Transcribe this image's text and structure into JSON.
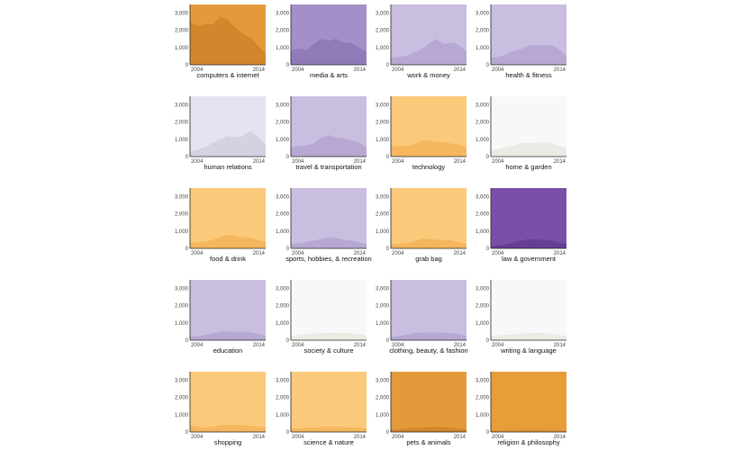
{
  "chart_data": {
    "type": "area",
    "layout": "small-multiples",
    "columns": 4,
    "rows": 5,
    "x_ticks": [
      "2004",
      "2014"
    ],
    "x_range": [
      2004,
      2014
    ],
    "y_ticks": [
      0,
      1000,
      2000,
      3000
    ],
    "y_tick_labels": [
      "0",
      "1,000",
      "2,000",
      "3,000"
    ],
    "ylim": [
      0,
      3500
    ],
    "years": [
      2004,
      2005,
      2006,
      2007,
      2008,
      2009,
      2010,
      2011,
      2012,
      2013,
      2014
    ],
    "panels": [
      {
        "label": "computers & internet",
        "bg": "#e49a3c",
        "fill": "#d4862c",
        "values": [
          2500,
          2250,
          2350,
          2350,
          2800,
          2600,
          2150,
          1800,
          1600,
          1100,
          650
        ]
      },
      {
        "label": "media & arts",
        "bg": "#a390c8",
        "fill": "#8f7bb8",
        "values": [
          800,
          950,
          850,
          1200,
          1500,
          1400,
          1500,
          1300,
          1250,
          1000,
          750
        ]
      },
      {
        "label": "work & money",
        "bg": "#c9bde0",
        "fill": "#b6a8d2",
        "values": [
          400,
          450,
          500,
          700,
          900,
          1200,
          1500,
          1200,
          1300,
          1150,
          750
        ]
      },
      {
        "label": "health & fitness",
        "bg": "#c9bde0",
        "fill": "#b6a8d2",
        "values": [
          400,
          450,
          600,
          800,
          900,
          1100,
          1150,
          1100,
          1150,
          900,
          500
        ]
      },
      {
        "label": "human relations",
        "bg": "#e6e2f1",
        "fill": "#d6d1e2",
        "values": [
          300,
          400,
          550,
          800,
          1000,
          1200,
          1100,
          1200,
          1500,
          1150,
          700
        ]
      },
      {
        "label": "travel & transportation",
        "bg": "#c9bde0",
        "fill": "#b6a8d2",
        "values": [
          550,
          600,
          650,
          750,
          1100,
          1250,
          1100,
          1050,
          950,
          800,
          550
        ]
      },
      {
        "label": "technology",
        "bg": "#fbc97a",
        "fill": "#f5b65e",
        "values": [
          600,
          600,
          650,
          700,
          900,
          950,
          850,
          850,
          750,
          700,
          500
        ]
      },
      {
        "label": "home & garden",
        "bg": "#f8f8f8",
        "fill": "#ebebe6",
        "values": [
          350,
          450,
          550,
          650,
          800,
          800,
          800,
          850,
          800,
          650,
          500
        ]
      },
      {
        "label": "food & drink",
        "bg": "#fbc97a",
        "fill": "#f5b65e",
        "values": [
          300,
          350,
          400,
          500,
          650,
          800,
          700,
          650,
          600,
          500,
          350
        ]
      },
      {
        "label": "sports, hobbies, & recreation",
        "bg": "#c9bde0",
        "fill": "#b6a8d2",
        "values": [
          250,
          300,
          350,
          450,
          550,
          650,
          600,
          500,
          450,
          350,
          250
        ]
      },
      {
        "label": "grab bag",
        "bg": "#fbc97a",
        "fill": "#f5b65e",
        "values": [
          250,
          250,
          300,
          400,
          550,
          550,
          500,
          500,
          450,
          350,
          250
        ]
      },
      {
        "label": "law & government",
        "bg": "#7a4fa8",
        "fill": "#663e93",
        "values": [
          150,
          200,
          250,
          350,
          450,
          550,
          500,
          500,
          450,
          350,
          250
        ]
      },
      {
        "label": "education",
        "bg": "#c9bde0",
        "fill": "#b6a8d2",
        "values": [
          200,
          250,
          300,
          400,
          500,
          500,
          450,
          500,
          450,
          350,
          250
        ]
      },
      {
        "label": "society & culture",
        "bg": "#f8f8f8",
        "fill": "#ebebe6",
        "values": [
          250,
          300,
          350,
          400,
          400,
          450,
          400,
          450,
          400,
          350,
          250
        ]
      },
      {
        "label": "clothing, beauty, & fashion",
        "bg": "#c9bde0",
        "fill": "#b6a8d2",
        "values": [
          200,
          250,
          300,
          400,
          450,
          450,
          450,
          450,
          400,
          350,
          250
        ]
      },
      {
        "label": "writing & language",
        "bg": "#f8f8f8",
        "fill": "#ebebe6",
        "values": [
          250,
          300,
          300,
          350,
          400,
          400,
          450,
          400,
          350,
          300,
          250
        ]
      },
      {
        "label": "shopping",
        "bg": "#fbc97a",
        "fill": "#f5b65e",
        "values": [
          400,
          300,
          250,
          300,
          400,
          400,
          400,
          400,
          350,
          300,
          250
        ]
      },
      {
        "label": "science & nature",
        "bg": "#fbc97a",
        "fill": "#f5b65e",
        "values": [
          200,
          200,
          250,
          250,
          300,
          300,
          300,
          300,
          250,
          250,
          200
        ]
      },
      {
        "label": "pets & animals",
        "bg": "#e49a3c",
        "fill": "#d4862c",
        "values": [
          150,
          150,
          200,
          250,
          250,
          300,
          300,
          300,
          250,
          200,
          150
        ]
      },
      {
        "label": "religion & philosophy",
        "bg": "#e89d39",
        "fill": "#df9535",
        "values": [
          100,
          100,
          150,
          150,
          200,
          200,
          200,
          200,
          150,
          150,
          100
        ]
      }
    ]
  }
}
